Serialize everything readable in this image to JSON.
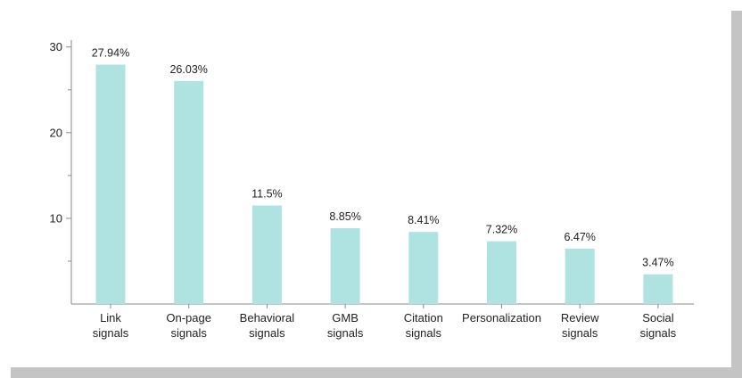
{
  "chart_data": {
    "type": "bar",
    "title": "",
    "xlabel": "",
    "ylabel": "",
    "ylim": [
      0,
      30
    ],
    "y_ticks": [
      10,
      20,
      30
    ],
    "grid": false,
    "colors": {
      "bar": "#aee3e2",
      "axis": "#8a8a8a",
      "text": "#222222",
      "shadow": "#c4c4c4"
    },
    "categories": [
      [
        "Link",
        "signals"
      ],
      [
        "On-page",
        "signals"
      ],
      [
        "Behavioral",
        "signals"
      ],
      [
        "GMB",
        "signals"
      ],
      [
        "Citation",
        "signals"
      ],
      [
        "Personalization"
      ],
      [
        "Review",
        "signals"
      ],
      [
        "Social",
        "signals"
      ]
    ],
    "values": [
      27.94,
      26.03,
      11.5,
      8.85,
      8.41,
      7.32,
      6.47,
      3.47
    ],
    "value_labels": [
      "27.94%",
      "26.03%",
      "11.5%",
      "8.85%",
      "8.41%",
      "7.32%",
      "6.47%",
      "3.47%"
    ]
  }
}
